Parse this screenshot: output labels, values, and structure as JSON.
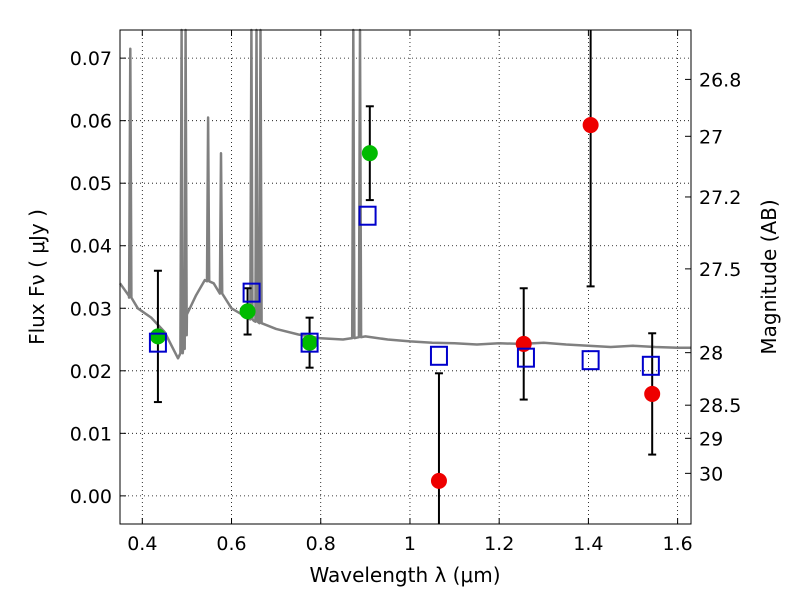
{
  "chart_data": {
    "type": "scatter",
    "title": "",
    "xlabel": "Wavelength  λ (μm)",
    "ylabel": "Flux  Fν  ( μJy )",
    "ylabel_right": "Magnitude (AB)",
    "xlim": [
      0.35,
      1.63
    ],
    "ylim": [
      -0.0045,
      0.0745
    ],
    "grid": true,
    "x_ticks": [
      0.4,
      0.6,
      0.8,
      1.0,
      1.2,
      1.4,
      1.6
    ],
    "x_tick_labels": [
      "0.4",
      "0.6",
      "0.8",
      "1",
      "1.2",
      "1.4",
      "1.6"
    ],
    "y_ticks": [
      0.0,
      0.01,
      0.02,
      0.03,
      0.04,
      0.05,
      0.06,
      0.07
    ],
    "y_tick_labels": [
      "0.00",
      "0.01",
      "0.02",
      "0.03",
      "0.04",
      "0.05",
      "0.06",
      "0.07"
    ],
    "mag_ticks": [
      {
        "label": "26.8",
        "flux": 0.0666
      },
      {
        "label": "27",
        "flux": 0.0575
      },
      {
        "label": "27.2",
        "flux": 0.0478
      },
      {
        "label": "27.5",
        "flux": 0.0363
      },
      {
        "label": "28",
        "flux": 0.0229
      },
      {
        "label": "28.5",
        "flux": 0.0145
      },
      {
        "label": "29",
        "flux": 0.0092
      },
      {
        "label": "30",
        "flux": 0.0036
      }
    ],
    "series": [
      {
        "marker": "circle",
        "color": "#00bb00",
        "points": [
          {
            "x": 0.435,
            "y": 0.0255,
            "err": 0.0105
          },
          {
            "x": 0.636,
            "y": 0.0295,
            "err": 0.0037
          },
          {
            "x": 0.775,
            "y": 0.0245,
            "err": 0.004
          },
          {
            "x": 0.91,
            "y": 0.0548,
            "err": 0.0075
          }
        ]
      },
      {
        "marker": "circle",
        "color": "#ee0000",
        "points": [
          {
            "x": 1.065,
            "y": 0.0024,
            "err": 0.0172
          },
          {
            "x": 1.255,
            "y": 0.0243,
            "err": 0.0089
          },
          {
            "x": 1.405,
            "y": 0.0593,
            "err": 0.0258
          },
          {
            "x": 1.543,
            "y": 0.0163,
            "err": 0.0097
          }
        ]
      },
      {
        "marker": "open-square",
        "color": "#0000cc",
        "points": [
          {
            "x": 0.435,
            "y": 0.0245
          },
          {
            "x": 0.645,
            "y": 0.0325
          },
          {
            "x": 0.775,
            "y": 0.0245
          },
          {
            "x": 0.905,
            "y": 0.0448
          },
          {
            "x": 1.065,
            "y": 0.0224
          },
          {
            "x": 1.26,
            "y": 0.0221
          },
          {
            "x": 1.405,
            "y": 0.0217
          },
          {
            "x": 1.54,
            "y": 0.0208
          }
        ]
      }
    ],
    "model_spectrum": {
      "color": "#808080",
      "x": [
        0.35,
        0.37,
        0.39,
        0.42,
        0.45,
        0.48,
        0.495,
        0.5,
        0.52,
        0.54,
        0.56,
        0.6,
        0.65,
        0.7,
        0.75,
        0.8,
        0.85,
        0.9,
        0.95,
        1.0,
        1.05,
        1.1,
        1.15,
        1.2,
        1.25,
        1.3,
        1.35,
        1.4,
        1.45,
        1.5,
        1.55,
        1.6,
        1.63
      ],
      "y": [
        0.034,
        0.032,
        0.03,
        0.0285,
        0.0262,
        0.022,
        0.0235,
        0.029,
        0.032,
        0.0345,
        0.034,
        0.03,
        0.028,
        0.0267,
        0.0258,
        0.0252,
        0.025,
        0.0255,
        0.025,
        0.0247,
        0.0245,
        0.0244,
        0.0242,
        0.0244,
        0.0243,
        0.0245,
        0.0242,
        0.024,
        0.0238,
        0.024,
        0.0238,
        0.0237,
        0.0237
      ],
      "emission_lines": [
        {
          "x": 0.373,
          "peak": 0.0715
        },
        {
          "x": 0.488,
          "peak": 0.0745
        },
        {
          "x": 0.497,
          "peak": 0.0745
        },
        {
          "x": 0.5475,
          "peak": 0.0605
        },
        {
          "x": 0.5765,
          "peak": 0.0548
        },
        {
          "x": 0.6445,
          "peak": 0.0745
        },
        {
          "x": 0.656,
          "peak": 0.0745
        },
        {
          "x": 0.665,
          "peak": 0.0745
        },
        {
          "x": 0.873,
          "peak": 0.0745
        },
        {
          "x": 0.888,
          "peak": 0.0745
        }
      ]
    }
  }
}
